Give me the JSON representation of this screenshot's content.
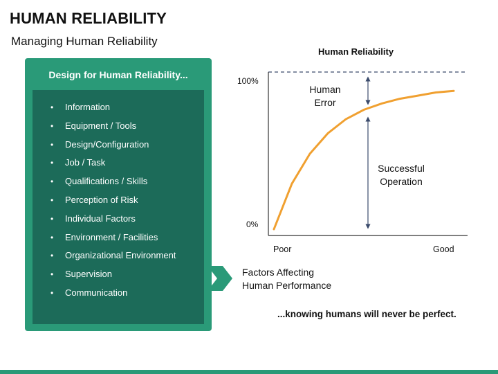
{
  "page": {
    "title": "HUMAN RELIABILITY",
    "subtitle": "Managing Human Reliability"
  },
  "panel": {
    "heading": "Design for Human Reliability...",
    "items": [
      "Information",
      "Equipment / Tools",
      "Design/Configuration",
      "Job / Task",
      "Qualifications / Skills",
      "Perception of Risk",
      "Individual Factors",
      "Environment / Facilities",
      "Organizational Environment",
      "Supervision",
      "Communication"
    ],
    "bullet": "•"
  },
  "factors_caption": [
    "Factors Affecting",
    "Human Performance"
  ],
  "tagline": "...knowing humans will never be perfect.",
  "chart_data": {
    "type": "line",
    "title": "Human Reliability",
    "y_ticks": [
      "100%",
      "0%"
    ],
    "x_ticks": [
      "Poor",
      "Good"
    ],
    "ylim": [
      0,
      100
    ],
    "reference_line": {
      "y": 100,
      "style": "dashed"
    },
    "annotations": [
      {
        "lines": [
          "Human",
          "Error"
        ]
      },
      {
        "lines": [
          "Successful",
          "Operation"
        ]
      }
    ],
    "series": [
      {
        "color": "#f0a030",
        "x": [
          0,
          0.1,
          0.2,
          0.3,
          0.4,
          0.5,
          0.6,
          0.7,
          0.8,
          0.9,
          1.0
        ],
        "values": [
          0,
          29,
          48,
          61,
          70,
          76,
          80,
          83,
          85,
          87,
          88
        ]
      }
    ]
  },
  "colors": {
    "accent": "#2a9a78",
    "panel_dark": "#1c6b59",
    "curve": "#f0a030",
    "axis": "#333333",
    "dashed": "#3a4a6b"
  }
}
